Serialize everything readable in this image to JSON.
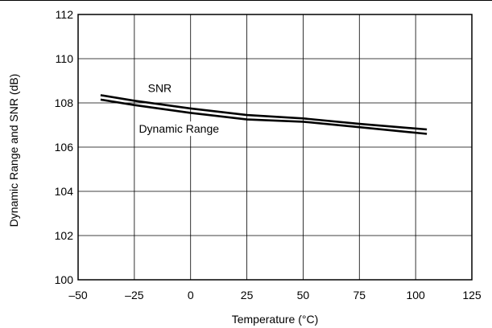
{
  "chart_data": {
    "type": "line",
    "xlabel": "Temperature (°C)",
    "ylabel": "Dynamic Range and SNR (dB)",
    "xlim": [
      -50,
      125
    ],
    "ylim": [
      100,
      112
    ],
    "xticks": [
      -50,
      -25,
      0,
      25,
      50,
      75,
      100,
      125
    ],
    "yticks": [
      100,
      102,
      104,
      106,
      108,
      110,
      112
    ],
    "xtick_labels": [
      "–50",
      "–25",
      "0",
      "25",
      "50",
      "75",
      "100",
      "125"
    ],
    "ytick_labels": [
      "100",
      "102",
      "104",
      "106",
      "108",
      "110",
      "112"
    ],
    "grid": true,
    "series": [
      {
        "name": "SNR",
        "label_at": {
          "x": -19,
          "y": 108.5
        },
        "x": [
          -40,
          -25,
          0,
          25,
          50,
          75,
          105
        ],
        "y": [
          108.35,
          108.1,
          107.75,
          107.45,
          107.3,
          107.05,
          106.8
        ]
      },
      {
        "name": "Dynamic Range",
        "label_at": {
          "x": -23,
          "y": 106.65
        },
        "x": [
          -40,
          -25,
          0,
          25,
          50,
          75,
          105
        ],
        "y": [
          108.15,
          107.9,
          107.55,
          107.25,
          107.15,
          106.9,
          106.6
        ]
      }
    ]
  }
}
